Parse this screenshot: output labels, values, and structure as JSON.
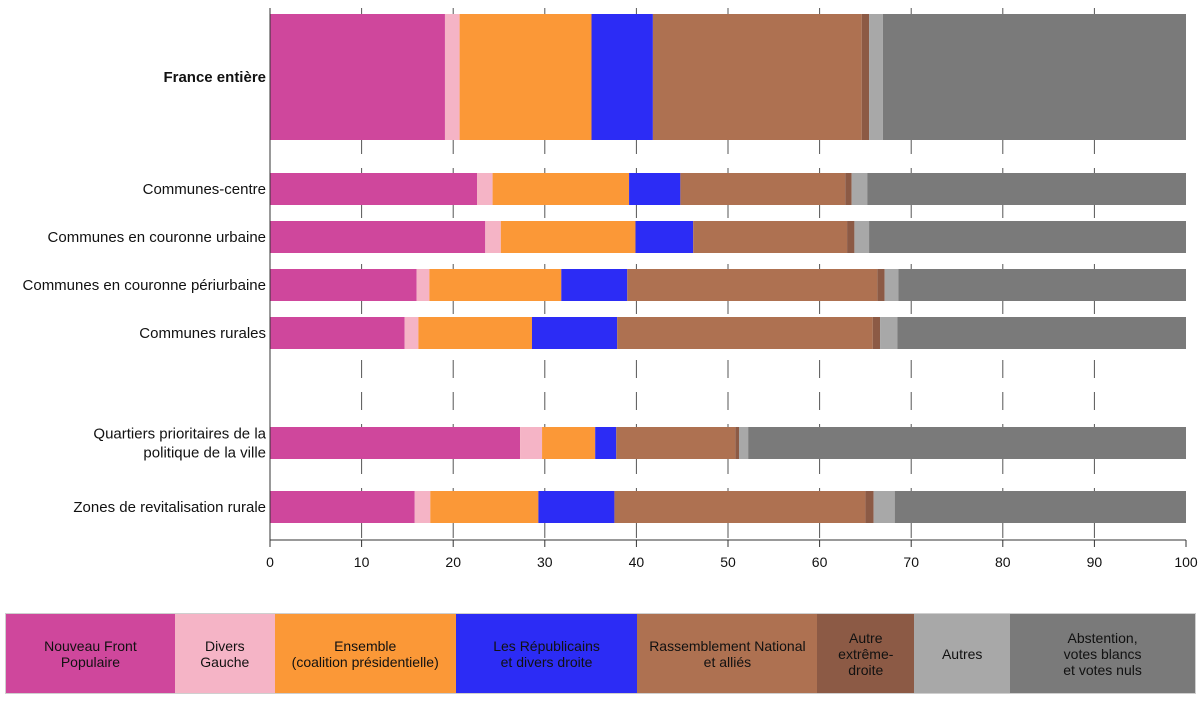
{
  "chart_data": {
    "type": "bar",
    "orientation": "horizontal",
    "stacked": true,
    "title": "",
    "xlabel": "",
    "ylabel": "",
    "xlim": [
      0,
      100
    ],
    "x_ticks": [
      "0",
      "10",
      "20",
      "30",
      "40",
      "50",
      "60",
      "70",
      "80",
      "90",
      "100"
    ],
    "grid": "vertical dashed",
    "legend_position": "bottom",
    "categories": [
      "France entière",
      "Communes-centre",
      "Communes en couronne urbaine",
      "Communes en couronne périurbaine",
      "Communes rurales",
      "Quartiers prioritaires de la\npolitique de la ville",
      "Zones de revitalisation rurale"
    ],
    "highlight_category": "France entière",
    "series": [
      {
        "name": "Nouveau Front\nPopulaire",
        "color": "#cf479c",
        "values": [
          19.1,
          22.6,
          23.5,
          16.0,
          14.7,
          27.3,
          15.8
        ]
      },
      {
        "name": "Divers\nGauche",
        "color": "#f5b4c6",
        "values": [
          1.6,
          1.7,
          1.7,
          1.4,
          1.5,
          2.4,
          1.7
        ]
      },
      {
        "name": "Ensemble\n(coalition présidentielle)",
        "color": "#fb9837",
        "values": [
          14.4,
          14.9,
          14.7,
          14.4,
          12.4,
          5.8,
          11.8
        ]
      },
      {
        "name": "Les Républicains\net divers droite",
        "color": "#2c2cf5",
        "values": [
          6.7,
          5.6,
          6.3,
          7.2,
          9.3,
          2.3,
          8.3
        ]
      },
      {
        "name": "Rassemblement National\net alliés",
        "color": "#ae7151",
        "values": [
          22.8,
          18.0,
          16.8,
          27.3,
          27.9,
          13.0,
          27.4
        ]
      },
      {
        "name": "Autre\nextrême-droite",
        "color": "#8c5a45",
        "values": [
          0.8,
          0.7,
          0.8,
          0.8,
          0.8,
          0.4,
          0.9
        ]
      },
      {
        "name": "Autres",
        "color": "#a8a8a8",
        "values": [
          1.5,
          1.7,
          1.6,
          1.5,
          1.9,
          1.0,
          2.3
        ]
      },
      {
        "name": "Abstention,\nvotes blancs\net votes nuls",
        "color": "#7a7a7a",
        "values": [
          33.1,
          34.8,
          34.6,
          31.4,
          31.5,
          47.8,
          31.8
        ]
      }
    ]
  }
}
